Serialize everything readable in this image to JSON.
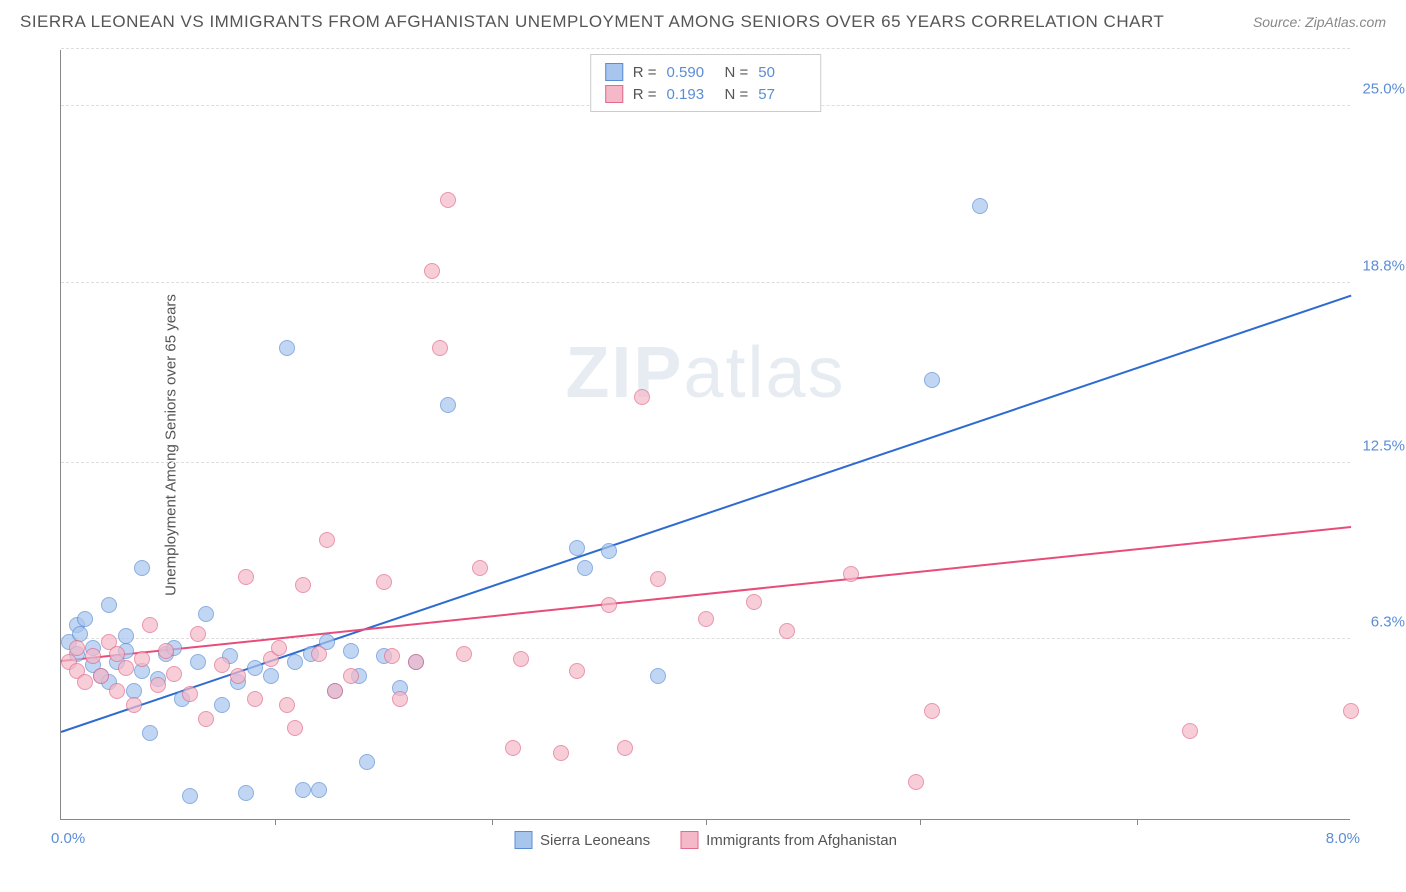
{
  "title": "SIERRA LEONEAN VS IMMIGRANTS FROM AFGHANISTAN UNEMPLOYMENT AMONG SENIORS OVER 65 YEARS CORRELATION CHART",
  "source": "Source: ZipAtlas.com",
  "ylabel": "Unemployment Among Seniors over 65 years",
  "watermark_zip": "ZIP",
  "watermark_atlas": "atlas",
  "chart": {
    "type": "scatter",
    "background_color": "#ffffff",
    "grid_color": "#dddddd",
    "xlim": [
      0,
      8.0
    ],
    "ylim": [
      0,
      27
    ],
    "x_tick_marks": [
      1.33,
      2.67,
      4.0,
      5.33,
      6.67
    ],
    "x_axis_labels": {
      "min": "0.0%",
      "max": "8.0%"
    },
    "y_gridlines": [
      {
        "value": 6.3,
        "label": "6.3%"
      },
      {
        "value": 12.5,
        "label": "12.5%"
      },
      {
        "value": 18.8,
        "label": "18.8%"
      },
      {
        "value": 25.0,
        "label": "25.0%"
      }
    ],
    "series": [
      {
        "name": "Sierra Leoneans",
        "fill_color": "#a8c6ed",
        "stroke_color": "#5b8dd6",
        "trend_color": "#2e6bd1",
        "r_value": "0.590",
        "n_value": "50",
        "trend": {
          "x1": 0,
          "y1": 3.0,
          "x2": 8.0,
          "y2": 18.3
        },
        "points": [
          [
            0.05,
            6.2
          ],
          [
            0.1,
            5.8
          ],
          [
            0.1,
            6.8
          ],
          [
            0.15,
            7.0
          ],
          [
            0.2,
            5.4
          ],
          [
            0.2,
            6.0
          ],
          [
            0.25,
            5.0
          ],
          [
            0.3,
            7.5
          ],
          [
            0.3,
            4.8
          ],
          [
            0.35,
            5.5
          ],
          [
            0.4,
            6.4
          ],
          [
            0.45,
            4.5
          ],
          [
            0.5,
            8.8
          ],
          [
            0.5,
            5.2
          ],
          [
            0.55,
            3.0
          ],
          [
            0.6,
            4.9
          ],
          [
            0.65,
            5.8
          ],
          [
            0.7,
            6.0
          ],
          [
            0.75,
            4.2
          ],
          [
            0.8,
            0.8
          ],
          [
            0.85,
            5.5
          ],
          [
            0.9,
            7.2
          ],
          [
            1.0,
            4.0
          ],
          [
            1.05,
            5.7
          ],
          [
            1.1,
            4.8
          ],
          [
            1.15,
            0.9
          ],
          [
            1.2,
            5.3
          ],
          [
            1.3,
            5.0
          ],
          [
            1.4,
            16.5
          ],
          [
            1.45,
            5.5
          ],
          [
            1.5,
            1.0
          ],
          [
            1.55,
            5.8
          ],
          [
            1.6,
            1.0
          ],
          [
            1.65,
            6.2
          ],
          [
            1.7,
            4.5
          ],
          [
            1.8,
            5.9
          ],
          [
            1.85,
            5.0
          ],
          [
            1.9,
            2.0
          ],
          [
            2.0,
            5.7
          ],
          [
            2.1,
            4.6
          ],
          [
            2.2,
            5.5
          ],
          [
            2.4,
            14.5
          ],
          [
            3.2,
            9.5
          ],
          [
            3.25,
            8.8
          ],
          [
            3.4,
            9.4
          ],
          [
            3.7,
            5.0
          ],
          [
            5.4,
            15.4
          ],
          [
            5.7,
            21.5
          ],
          [
            0.12,
            6.5
          ],
          [
            0.4,
            5.9
          ]
        ]
      },
      {
        "name": "Immigants from Afghanistan",
        "legend_label": "Immigrants from Afghanistan",
        "fill_color": "#f5b8c8",
        "stroke_color": "#e06b8b",
        "trend_color": "#e84c7a",
        "r_value": "0.193",
        "n_value": "57",
        "trend": {
          "x1": 0,
          "y1": 5.5,
          "x2": 8.0,
          "y2": 10.2
        },
        "points": [
          [
            0.05,
            5.5
          ],
          [
            0.1,
            5.2
          ],
          [
            0.1,
            6.0
          ],
          [
            0.15,
            4.8
          ],
          [
            0.2,
            5.7
          ],
          [
            0.25,
            5.0
          ],
          [
            0.3,
            6.2
          ],
          [
            0.35,
            4.5
          ],
          [
            0.35,
            5.8
          ],
          [
            0.4,
            5.3
          ],
          [
            0.45,
            4.0
          ],
          [
            0.5,
            5.6
          ],
          [
            0.55,
            6.8
          ],
          [
            0.6,
            4.7
          ],
          [
            0.65,
            5.9
          ],
          [
            0.7,
            5.1
          ],
          [
            0.8,
            4.4
          ],
          [
            0.85,
            6.5
          ],
          [
            0.9,
            3.5
          ],
          [
            1.0,
            5.4
          ],
          [
            1.1,
            5.0
          ],
          [
            1.15,
            8.5
          ],
          [
            1.2,
            4.2
          ],
          [
            1.3,
            5.6
          ],
          [
            1.35,
            6.0
          ],
          [
            1.4,
            4.0
          ],
          [
            1.45,
            3.2
          ],
          [
            1.5,
            8.2
          ],
          [
            1.6,
            5.8
          ],
          [
            1.65,
            9.8
          ],
          [
            1.7,
            4.5
          ],
          [
            1.8,
            5.0
          ],
          [
            2.0,
            8.3
          ],
          [
            2.05,
            5.7
          ],
          [
            2.1,
            4.2
          ],
          [
            2.2,
            5.5
          ],
          [
            2.3,
            19.2
          ],
          [
            2.35,
            16.5
          ],
          [
            2.4,
            21.7
          ],
          [
            2.6,
            8.8
          ],
          [
            2.8,
            2.5
          ],
          [
            2.85,
            5.6
          ],
          [
            3.1,
            2.3
          ],
          [
            3.2,
            5.2
          ],
          [
            3.4,
            7.5
          ],
          [
            3.5,
            2.5
          ],
          [
            3.6,
            14.8
          ],
          [
            3.7,
            8.4
          ],
          [
            4.0,
            7.0
          ],
          [
            4.3,
            7.6
          ],
          [
            4.5,
            6.6
          ],
          [
            4.9,
            8.6
          ],
          [
            5.3,
            1.3
          ],
          [
            5.4,
            3.8
          ],
          [
            7.0,
            3.1
          ],
          [
            8.0,
            3.8
          ],
          [
            2.5,
            5.8
          ]
        ]
      }
    ]
  }
}
